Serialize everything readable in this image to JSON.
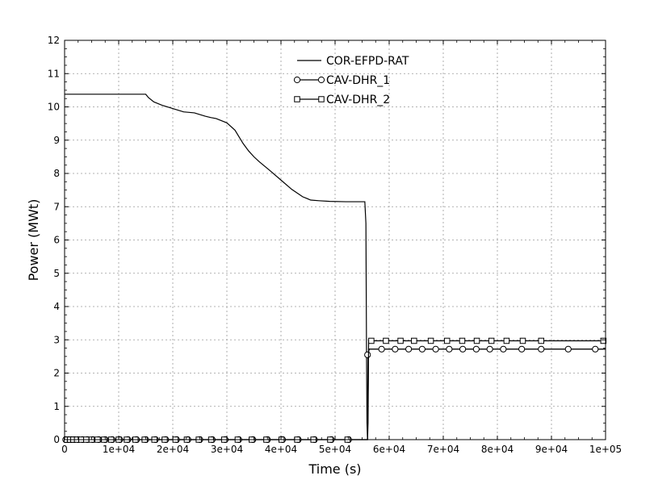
{
  "chart_data": {
    "type": "line",
    "title": "",
    "xlabel": "Time (s)",
    "ylabel": "Power (MWt)",
    "xlim": [
      0,
      100000
    ],
    "ylim": [
      0,
      12
    ],
    "xticks": [
      0,
      10000,
      20000,
      30000,
      40000,
      50000,
      60000,
      70000,
      80000,
      90000,
      100000
    ],
    "xtick_labels": [
      "0",
      "1e+04",
      "2e+04",
      "3e+04",
      "4e+04",
      "5e+04",
      "6e+04",
      "7e+04",
      "8e+04",
      "9e+04",
      "1e+05"
    ],
    "yticks": [
      0,
      1,
      2,
      3,
      4,
      5,
      6,
      7,
      8,
      9,
      10,
      11,
      12
    ],
    "ytick_labels": [
      "0",
      "1",
      "2",
      "3",
      "4",
      "5",
      "6",
      "7",
      "8",
      "9",
      "10",
      "11",
      "12"
    ],
    "grid": true,
    "legend_position": "top-center",
    "series": [
      {
        "name": "COR-EFPD-RAT",
        "marker": "none",
        "x": [
          0,
          15000,
          15500,
          16500,
          18000,
          20000,
          22000,
          24000,
          26000,
          27000,
          28000,
          30000,
          31500,
          33000,
          34000,
          35000,
          36000,
          38000,
          40000,
          42000,
          44000,
          45500,
          47000,
          49000,
          52000,
          55500,
          55700,
          55800,
          55900,
          56000,
          56200,
          100000
        ],
        "y": [
          10.38,
          10.38,
          10.28,
          10.15,
          10.05,
          9.95,
          9.85,
          9.82,
          9.72,
          9.68,
          9.65,
          9.52,
          9.3,
          8.9,
          8.68,
          8.5,
          8.35,
          8.08,
          7.8,
          7.52,
          7.3,
          7.2,
          7.18,
          7.16,
          7.15,
          7.15,
          6.5,
          3.0,
          0.5,
          0.0,
          2.72,
          2.72
        ]
      },
      {
        "name": "CAV-DHR_1",
        "marker": "circle",
        "x": [
          0,
          56000,
          56100,
          56300,
          100000
        ],
        "y": [
          0,
          0,
          2.55,
          2.72,
          2.72
        ],
        "marker_x": [
          200,
          700,
          1200,
          1800,
          2500,
          3300,
          4200,
          5200,
          6300,
          7500,
          8800,
          10200,
          11700,
          13300,
          15000,
          16800,
          18700,
          20700,
          22800,
          25000,
          27300,
          29700,
          32200,
          34800,
          37500,
          40300,
          43200,
          46200,
          49300,
          52500,
          56000,
          58600,
          61100,
          63600,
          66100,
          68600,
          71100,
          73600,
          76100,
          78600,
          81100,
          84500,
          88100,
          93100,
          98100
        ],
        "marker_y": [
          0,
          0,
          0,
          0,
          0,
          0,
          0,
          0,
          0,
          0,
          0,
          0,
          0,
          0,
          0,
          0,
          0,
          0,
          0,
          0,
          0,
          0,
          0,
          0,
          0,
          0,
          0,
          0,
          0,
          0,
          2.55,
          2.72,
          2.72,
          2.72,
          2.72,
          2.72,
          2.72,
          2.72,
          2.72,
          2.72,
          2.72,
          2.72,
          2.72,
          2.72,
          2.72
        ]
      },
      {
        "name": "CAV-DHR_2",
        "marker": "square",
        "x": [
          0,
          56000,
          56100,
          56200,
          100000
        ],
        "y": [
          0,
          0,
          0.5,
          2.97,
          2.97
        ],
        "marker_x": [
          400,
          1000,
          1600,
          2300,
          3100,
          4000,
          5000,
          6100,
          7300,
          8600,
          10000,
          11500,
          13100,
          14800,
          16600,
          18500,
          20500,
          22600,
          24800,
          27100,
          29500,
          32000,
          34600,
          37300,
          40100,
          43000,
          46000,
          49100,
          52300,
          56700,
          59400,
          62100,
          64600,
          67700,
          70700,
          73500,
          76200,
          78900,
          81700,
          84700,
          88100,
          99600
        ],
        "marker_y": [
          0,
          0,
          0,
          0,
          0,
          0,
          0,
          0,
          0,
          0,
          0,
          0,
          0,
          0,
          0,
          0,
          0,
          0,
          0,
          0,
          0,
          0,
          0,
          0,
          0,
          0,
          0,
          0,
          0,
          2.97,
          2.97,
          2.97,
          2.97,
          2.97,
          2.97,
          2.97,
          2.97,
          2.97,
          2.97,
          2.97,
          2.97,
          2.97
        ]
      }
    ]
  }
}
